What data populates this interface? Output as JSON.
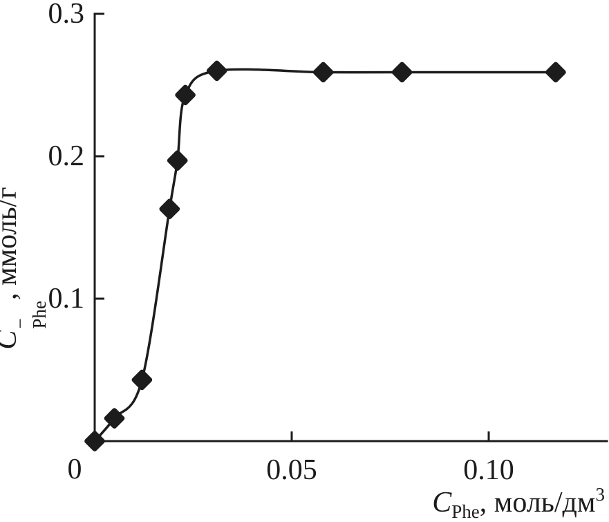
{
  "colors": {
    "background": "#ffffff",
    "ink": "#1c1c1c"
  },
  "chart_data": {
    "type": "line",
    "title": "",
    "xlabel": {
      "symbol": "C",
      "sub": "Phe",
      "rest": ", моль/дм",
      "sup": "3"
    },
    "ylabel": {
      "symbol": "C",
      "sup": "−",
      "sub": "Phe",
      "rest": ", ммоль/г"
    },
    "xlim": [
      0,
      0.13
    ],
    "ylim": [
      0,
      0.3
    ],
    "grid": false,
    "legend": "none",
    "origin_label": "0",
    "x_ticks": [
      {
        "value": 0.05,
        "label": "0.05"
      },
      {
        "value": 0.1,
        "label": "0.10"
      }
    ],
    "y_ticks": [
      {
        "value": 0.1,
        "label": "0.1"
      },
      {
        "value": 0.2,
        "label": "0.2"
      },
      {
        "value": 0.3,
        "label": "0.3"
      }
    ],
    "series": [
      {
        "name": "phenylalanine-adsorption-isotherm",
        "marker": "diamond",
        "points": [
          [
            0.0,
            0.0
          ],
          [
            0.005,
            0.016
          ],
          [
            0.012,
            0.043
          ],
          [
            0.019,
            0.163
          ],
          [
            0.021,
            0.197
          ],
          [
            0.023,
            0.243
          ],
          [
            0.031,
            0.26
          ],
          [
            0.058,
            0.259
          ],
          [
            0.078,
            0.259
          ],
          [
            0.117,
            0.259
          ]
        ]
      }
    ]
  }
}
